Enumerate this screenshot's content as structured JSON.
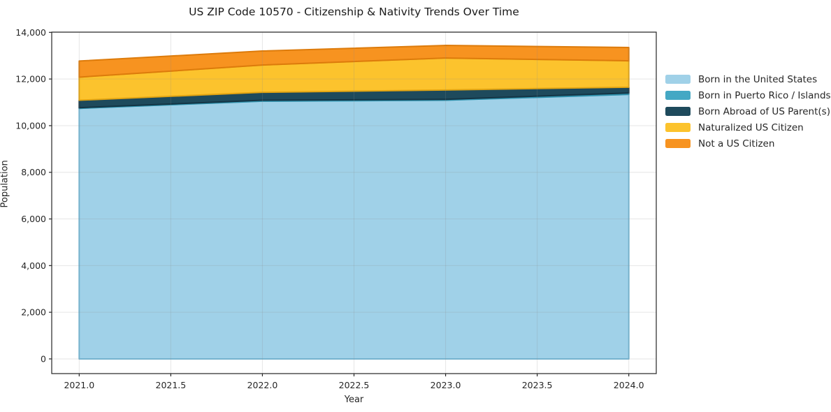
{
  "title": "US ZIP Code 10570 - Citizenship & Nativity Trends Over Time",
  "axes": {
    "xlabel": "Year",
    "ylabel": "Population"
  },
  "chart_data": {
    "type": "area",
    "stacked": true,
    "title": "US ZIP Code 10570 - Citizenship & Nativity Trends Over Time",
    "xlabel": "Year",
    "ylabel": "Population",
    "grid": true,
    "legend_position": "right-outside",
    "x": [
      2021,
      2022,
      2023,
      2024
    ],
    "series": [
      {
        "name": "Born in the United States",
        "color": "#A0D1E8",
        "edge": "#74B8D6",
        "values": [
          10740,
          11050,
          11090,
          11340
        ]
      },
      {
        "name": "Born in Puerto Rico / Islands",
        "color": "#44A8C4",
        "edge": "#2F91AC",
        "values": [
          30,
          40,
          40,
          60
        ]
      },
      {
        "name": "Born Abroad of US Parent(s)",
        "color": "#1E4A5C",
        "edge": "#143545",
        "values": [
          320,
          340,
          400,
          250
        ]
      },
      {
        "name": "Naturalized US Citizen",
        "color": "#FCC32D",
        "edge": "#E3A512",
        "values": [
          990,
          1170,
          1370,
          1130
        ]
      },
      {
        "name": "Not a US Citizen",
        "color": "#F79320",
        "edge": "#DD7B0B",
        "values": [
          690,
          600,
          540,
          570
        ]
      }
    ],
    "totals": [
      12770,
      13200,
      13440,
      13350
    ],
    "xlim": [
      2020.85,
      2024.15
    ],
    "ylim": [
      -630,
      14010
    ],
    "xticks": {
      "values": [
        2021.0,
        2021.5,
        2022.0,
        2022.5,
        2023.0,
        2023.5,
        2024.0
      ],
      "labels": [
        "2021.0",
        "2021.5",
        "2022.0",
        "2022.5",
        "2023.0",
        "2023.5",
        "2024.0"
      ]
    },
    "yticks": {
      "values": [
        0,
        2000,
        4000,
        6000,
        8000,
        10000,
        12000,
        14000
      ],
      "labels": [
        "0",
        "2,000",
        "4,000",
        "6,000",
        "8,000",
        "10,000",
        "12,000",
        "14,000"
      ]
    }
  },
  "colors": {
    "spine": "#262626",
    "tick_label": "#262626",
    "grid": "rgba(140,140,140,0.22)"
  }
}
